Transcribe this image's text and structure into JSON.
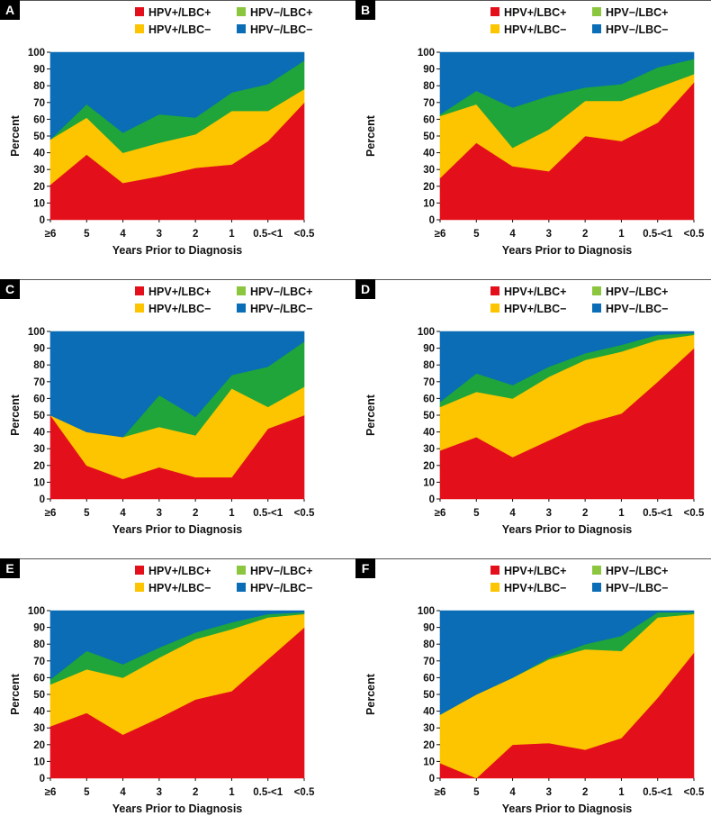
{
  "series_names": [
    "HPV+/LBC+",
    "HPV+/LBC−",
    "HPV−/LBC+",
    "HPV−/LBC−"
  ],
  "colors": {
    "HPV+/LBC+": "#e3101b",
    "HPV+/LBC−": "#fdc400",
    "HPV−/LBC+": "#1fa53a",
    "HPV−/LBC−": "#0a6db5",
    "legend_HPV−/LBC+": "#8cc63f",
    "panel_label_bg": "#000000",
    "rule": "#555555"
  },
  "chart_data": [
    {
      "panel": "A",
      "type": "area",
      "stacked": true,
      "categories": [
        "≥6",
        "5",
        "4",
        "3",
        "2",
        "1",
        "0.5-<1",
        "<0.5"
      ],
      "xlabel": "Years Prior to Diagnosis",
      "ylabel": "Percent",
      "ylim": [
        0,
        100
      ],
      "yticks": [
        0,
        10,
        20,
        30,
        40,
        50,
        60,
        70,
        80,
        90,
        100
      ],
      "legend": [
        "HPV+/LBC+",
        "HPV−/LBC+",
        "HPV+/LBC−",
        "HPV−/LBC−"
      ],
      "series": [
        {
          "name": "HPV+/LBC+",
          "values": [
            21,
            39,
            22,
            26,
            31,
            33,
            47,
            70
          ]
        },
        {
          "name": "HPV+/LBC−",
          "values": [
            27,
            22,
            18,
            20,
            20,
            32,
            18,
            8
          ]
        },
        {
          "name": "HPV−/LBC+",
          "values": [
            0,
            8,
            12,
            17,
            10,
            11,
            16,
            17
          ]
        },
        {
          "name": "HPV−/LBC−",
          "values": [
            52,
            31,
            48,
            37,
            39,
            24,
            19,
            5
          ]
        }
      ]
    },
    {
      "panel": "B",
      "type": "area",
      "stacked": true,
      "categories": [
        "≥6",
        "5",
        "4",
        "3",
        "2",
        "1",
        "0.5-<1",
        "<0.5"
      ],
      "xlabel": "Years Prior to Diagnosis",
      "ylabel": "Percent",
      "ylim": [
        0,
        100
      ],
      "yticks": [
        0,
        10,
        20,
        30,
        40,
        50,
        60,
        70,
        80,
        90,
        100
      ],
      "legend": [
        "HPV+/LBC+",
        "HPV−/LBC+",
        "HPV+/LBC−",
        "HPV−/LBC−"
      ],
      "series": [
        {
          "name": "HPV+/LBC+",
          "values": [
            25,
            46,
            32,
            29,
            50,
            47,
            58,
            82
          ]
        },
        {
          "name": "HPV+/LBC−",
          "values": [
            37,
            23,
            11,
            25,
            21,
            24,
            21,
            5
          ]
        },
        {
          "name": "HPV−/LBC+",
          "values": [
            1,
            8,
            24,
            20,
            8,
            10,
            12,
            9
          ]
        },
        {
          "name": "HPV−/LBC−",
          "values": [
            37,
            23,
            33,
            26,
            21,
            19,
            9,
            4
          ]
        }
      ]
    },
    {
      "panel": "C",
      "type": "area",
      "stacked": true,
      "categories": [
        "≥6",
        "5",
        "4",
        "3",
        "2",
        "1",
        "0.5-<1",
        "<0.5"
      ],
      "xlabel": "Years Prior to Diagnosis",
      "ylabel": "Percent",
      "ylim": [
        0,
        100
      ],
      "yticks": [
        0,
        10,
        20,
        30,
        40,
        50,
        60,
        70,
        80,
        90,
        100
      ],
      "legend": [
        "HPV+/LBC+",
        "HPV−/LBC+",
        "HPV+/LBC−",
        "HPV−/LBC−"
      ],
      "series": [
        {
          "name": "HPV+/LBC+",
          "values": [
            50,
            20,
            12,
            19,
            13,
            13,
            42,
            50
          ]
        },
        {
          "name": "HPV+/LBC−",
          "values": [
            0,
            20,
            25,
            24,
            25,
            53,
            13,
            17
          ]
        },
        {
          "name": "HPV−/LBC+",
          "values": [
            0,
            0,
            0,
            19,
            11,
            8,
            24,
            27
          ]
        },
        {
          "name": "HPV−/LBC−",
          "values": [
            50,
            60,
            63,
            38,
            51,
            26,
            21,
            6
          ]
        }
      ]
    },
    {
      "panel": "D",
      "type": "area",
      "stacked": true,
      "categories": [
        "≥6",
        "5",
        "4",
        "3",
        "2",
        "1",
        "0.5-<1",
        "<0.5"
      ],
      "xlabel": "Years Prior to Diagnosis",
      "ylabel": "Percent",
      "ylim": [
        0,
        100
      ],
      "yticks": [
        0,
        10,
        20,
        30,
        40,
        50,
        60,
        70,
        80,
        90,
        100
      ],
      "legend": [
        "HPV+/LBC+",
        "HPV−/LBC+",
        "HPV+/LBC−",
        "HPV−/LBC−"
      ],
      "series": [
        {
          "name": "HPV+/LBC+",
          "values": [
            29,
            37,
            25,
            35,
            45,
            51,
            70,
            90
          ]
        },
        {
          "name": "HPV+/LBC−",
          "values": [
            26,
            27,
            35,
            38,
            38,
            37,
            25,
            8
          ]
        },
        {
          "name": "HPV−/LBC+",
          "values": [
            3,
            11,
            8,
            6,
            4,
            4,
            3,
            1
          ]
        },
        {
          "name": "HPV−/LBC−",
          "values": [
            42,
            25,
            32,
            21,
            13,
            8,
            2,
            1
          ]
        }
      ]
    },
    {
      "panel": "E",
      "type": "area",
      "stacked": true,
      "categories": [
        "≥6",
        "5",
        "4",
        "3",
        "2",
        "1",
        "0.5-<1",
        "<0.5"
      ],
      "xlabel": "Years Prior to Diagnosis",
      "ylabel": "Percent",
      "ylim": [
        0,
        100
      ],
      "yticks": [
        0,
        10,
        20,
        30,
        40,
        50,
        60,
        70,
        80,
        90,
        100
      ],
      "legend": [
        "HPV+/LBC+",
        "HPV−/LBC+",
        "HPV+/LBC−",
        "HPV−/LBC−"
      ],
      "series": [
        {
          "name": "HPV+/LBC+",
          "values": [
            31,
            39,
            26,
            36,
            47,
            52,
            71,
            90
          ]
        },
        {
          "name": "HPV+/LBC−",
          "values": [
            25,
            26,
            34,
            36,
            36,
            37,
            25,
            8
          ]
        },
        {
          "name": "HPV−/LBC+",
          "values": [
            3,
            11,
            8,
            6,
            4,
            4,
            2,
            1
          ]
        },
        {
          "name": "HPV−/LBC−",
          "values": [
            41,
            24,
            32,
            22,
            13,
            7,
            2,
            1
          ]
        }
      ]
    },
    {
      "panel": "F",
      "type": "area",
      "stacked": true,
      "categories": [
        "≥6",
        "5",
        "4",
        "3",
        "2",
        "1",
        "0.5-<1",
        "<0.5"
      ],
      "xlabel": "Years Prior to Diagnosis",
      "ylabel": "Percent",
      "ylim": [
        0,
        100
      ],
      "yticks": [
        0,
        10,
        20,
        30,
        40,
        50,
        60,
        70,
        80,
        90,
        100
      ],
      "legend": [
        "HPV+/LBC+",
        "HPV−/LBC+",
        "HPV+/LBC−",
        "HPV−/LBC−"
      ],
      "series": [
        {
          "name": "HPV+/LBC+",
          "values": [
            9,
            0,
            20,
            21,
            17,
            24,
            48,
            75
          ]
        },
        {
          "name": "HPV+/LBC−",
          "values": [
            29,
            50,
            40,
            50,
            60,
            52,
            48,
            23
          ]
        },
        {
          "name": "HPV−/LBC+",
          "values": [
            0,
            0,
            0,
            1,
            3,
            9,
            3,
            1
          ]
        },
        {
          "name": "HPV−/LBC−",
          "values": [
            62,
            50,
            40,
            28,
            20,
            15,
            1,
            1
          ]
        }
      ]
    }
  ]
}
